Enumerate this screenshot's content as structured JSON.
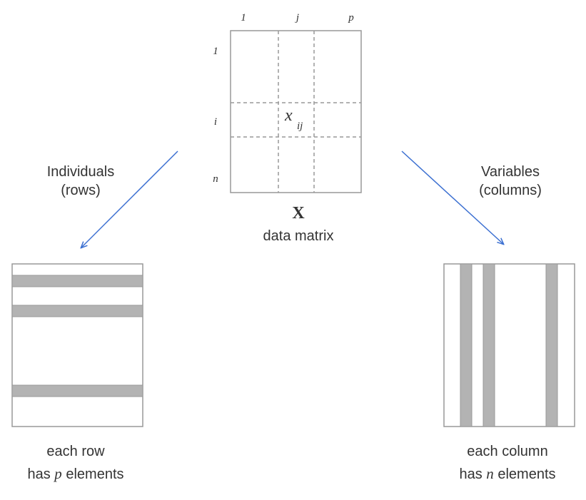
{
  "matrix": {
    "col_labels": [
      "1",
      "j",
      "p"
    ],
    "row_labels": [
      "1",
      "i",
      "n"
    ],
    "cell_var": "x",
    "cell_sub": "ij",
    "symbol": "X",
    "caption": "data matrix"
  },
  "left_branch": {
    "label_line1": "Individuals",
    "label_line2": "(rows)",
    "caption_line1": "each row",
    "caption_line2_pre": "has ",
    "caption_line2_var": "p",
    "caption_line2_post": " elements"
  },
  "right_branch": {
    "label_line1": "Variables",
    "label_line2": "(columns)",
    "caption_line1": "each column",
    "caption_line2_pre": "has ",
    "caption_line2_var": "n",
    "caption_line2_post": " elements"
  },
  "colors": {
    "frame": "#999999",
    "dash": "#999999",
    "band_fill": "#b3b3b3",
    "arrow": "#3b6fd1",
    "text": "#333333"
  }
}
